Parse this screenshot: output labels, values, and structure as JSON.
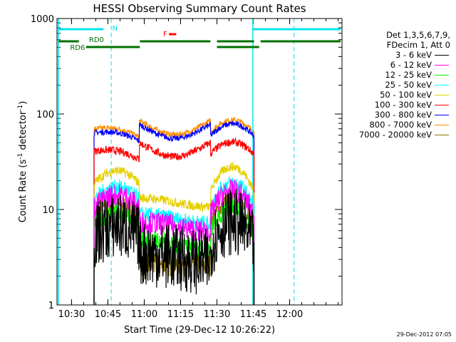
{
  "chart_data": {
    "type": "line",
    "title": "HESSI Observing Summary Count Rates",
    "xlabel": "Start Time (29-Dec-12 10:26:22)",
    "ylabel_main": "Count Rate (s",
    "ylabel_sup1": "-1",
    "ylabel_mid": " detector",
    "ylabel_sup2": "-1",
    "ylabel_end": ")",
    "y_scale": "log",
    "ylim": [
      1,
      1000
    ],
    "xlim_minutes": [
      10.4,
      12.36
    ],
    "x_ticks": [
      {
        "label": "10:30",
        "value": 10.5
      },
      {
        "label": "10:45",
        "value": 10.75
      },
      {
        "label": "11:00",
        "value": 11.0
      },
      {
        "label": "11:15",
        "value": 11.25
      },
      {
        "label": "11:30",
        "value": 11.5
      },
      {
        "label": "11:45",
        "value": 11.75
      },
      {
        "label": "12:00",
        "value": 12.0
      }
    ],
    "y_ticks": [
      {
        "label": "1",
        "value": 1
      },
      {
        "label": "10",
        "value": 10
      },
      {
        "label": "100",
        "value": 100
      },
      {
        "label": "1000",
        "value": 1000
      }
    ],
    "flag_labels": {
      "night": "N",
      "saa": "F",
      "rd0": "RD0",
      "rd6": "RD6"
    },
    "legend_header": [
      "Det 1,3,5,6,7,9,",
      "FDecim 1, Att 0"
    ],
    "series": [
      {
        "name": "3 - 6 keV",
        "color": "#000000",
        "base": 4.5,
        "noise": 0.35
      },
      {
        "name": "6 - 12 keV",
        "color": "#ff00ff",
        "base": 9.5,
        "noise": 0.12
      },
      {
        "name": "12 - 25 keV",
        "color": "#00ff00",
        "base": 6.2,
        "noise": 0.1
      },
      {
        "name": "25 - 50 keV",
        "color": "#00ffff",
        "base": 11.5,
        "noise": 0.08
      },
      {
        "name": "50 - 100 keV",
        "color": "#e6d000",
        "base": 17,
        "noise": 0.05
      },
      {
        "name": "100 - 300 keV",
        "color": "#ff0000",
        "base": 40,
        "noise": 0.04
      },
      {
        "name": "300 - 800 keV",
        "color": "#0000ff",
        "base": 62,
        "noise": 0.03
      },
      {
        "name": "800 - 7000 keV",
        "color": "#ff8c00",
        "base": 68,
        "noise": 0.03
      },
      {
        "name": "7000 - 20000 keV",
        "color": "#8b7500",
        "base": 7.5,
        "noise": 0.12
      }
    ]
  },
  "footer_timestamp": "29-Dec-2012 07:05"
}
